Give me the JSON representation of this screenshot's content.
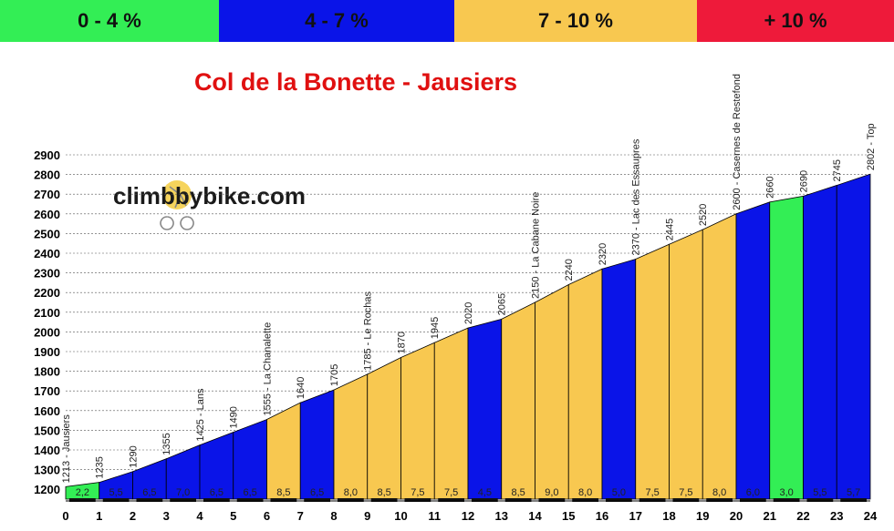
{
  "legend": [
    {
      "label": "0 - 4 %",
      "color": "#33ee55"
    },
    {
      "label": "4 - 7 %",
      "color": "#0a14e8"
    },
    {
      "label": "7 - 10 %",
      "color": "#f8c850"
    },
    {
      "label": "+ 10 %",
      "color": "#ee1a3a"
    }
  ],
  "watermark": "climbbybike.com",
  "chart_data": {
    "type": "area",
    "title": "Col de la Bonette - Jausiers",
    "xlabel": "",
    "ylabel": "",
    "x": [
      0,
      1,
      2,
      3,
      4,
      5,
      6,
      7,
      8,
      9,
      10,
      11,
      12,
      13,
      14,
      15,
      16,
      17,
      18,
      19,
      20,
      21,
      22,
      23,
      24
    ],
    "y": [
      1213,
      1235,
      1290,
      1355,
      1425,
      1490,
      1555,
      1640,
      1705,
      1785,
      1870,
      1945,
      2020,
      2065,
      2150,
      2240,
      2320,
      2370,
      2445,
      2520,
      2600,
      2660,
      2690,
      2745,
      2802
    ],
    "point_labels": [
      "1213 - Jausiers",
      "1235",
      "1290",
      "1355",
      "1425 - Lans",
      "1490",
      "1555 - La Chanalette",
      "1640",
      "1705",
      "1785 - Le Rochas",
      "1870",
      "1945",
      "2020",
      "2065",
      "2150 - La Cabane Noire",
      "2240",
      "2320",
      "2370 - Lac des Essaupres",
      "2445",
      "2520",
      "2600 - Casernes de Restefond",
      "2660",
      "2690",
      "2745",
      "2802 - Top"
    ],
    "segment_grades": [
      "2,2",
      "5,5",
      "6,5",
      "7,0",
      "6,5",
      "6,5",
      "8,5",
      "6,5",
      "8,0",
      "8,5",
      "7,5",
      "7,5",
      "4,5",
      "8,5",
      "9,0",
      "8,0",
      "5,0",
      "7,5",
      "7,5",
      "8,0",
      "6,0",
      "3,0",
      "5,5",
      "5,7"
    ],
    "segment_colors": [
      "#33ee55",
      "#0a14e8",
      "#0a14e8",
      "#0a14e8",
      "#0a14e8",
      "#0a14e8",
      "#f8c850",
      "#0a14e8",
      "#f8c850",
      "#f8c850",
      "#f8c850",
      "#f8c850",
      "#0a14e8",
      "#f8c850",
      "#f8c850",
      "#f8c850",
      "#0a14e8",
      "#f8c850",
      "#f8c850",
      "#f8c850",
      "#0a14e8",
      "#33ee55",
      "#0a14e8",
      "#0a14e8"
    ],
    "y_ticks": [
      1200,
      1300,
      1400,
      1500,
      1600,
      1700,
      1800,
      1900,
      2000,
      2100,
      2200,
      2300,
      2400,
      2500,
      2600,
      2700,
      2800,
      2900
    ],
    "x_ticks": [
      "0",
      "1",
      "2",
      "3",
      "4",
      "5",
      "6",
      "7",
      "8",
      "9",
      "10",
      "11",
      "12",
      "13",
      "14",
      "15",
      "16",
      "17",
      "18",
      "19",
      "20",
      "21",
      "22",
      "23",
      "24"
    ],
    "ylim": [
      1150,
      2900
    ],
    "xlim": [
      0,
      24
    ],
    "grid": "horizontal dashed",
    "title_color": "#e01010"
  }
}
